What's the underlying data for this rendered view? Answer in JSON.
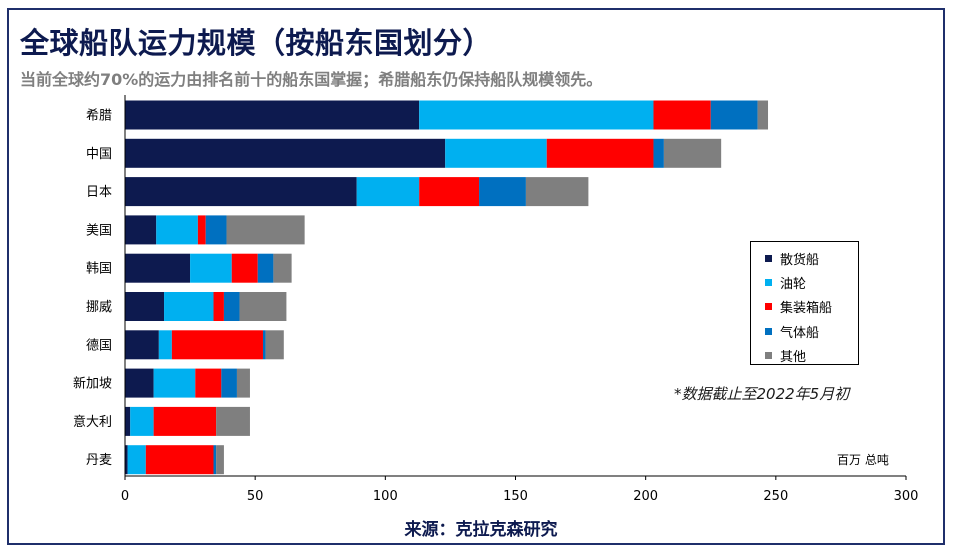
{
  "title": "全球船队运力规模（按船东国划分）",
  "subtitle": "当前全球约70%的运力由排名前十的船东国掌握；希腊船东仍保持船队规模领先。",
  "note": "*数据截止至2022年5月初",
  "unit_label": "百万 总吨",
  "source": "来源：克拉克森研究",
  "chart_data": {
    "type": "bar",
    "orientation": "horizontal",
    "stacked": true,
    "categories": [
      "希腊",
      "中国",
      "日本",
      "美国",
      "韩国",
      "挪威",
      "德国",
      "新加坡",
      "意大利",
      "丹麦"
    ],
    "series": [
      {
        "name": "散货船",
        "color": "#0d1a4f",
        "values": [
          113,
          123,
          89,
          12,
          25,
          15,
          13,
          11,
          2,
          1
        ]
      },
      {
        "name": "油轮",
        "color": "#00b0f0",
        "values": [
          90,
          39,
          24,
          16,
          16,
          19,
          5,
          16,
          9,
          7
        ]
      },
      {
        "name": "集装箱船",
        "color": "#ff0000",
        "values": [
          22,
          41,
          23,
          3,
          10,
          4,
          35,
          10,
          24,
          26
        ]
      },
      {
        "name": "气体船",
        "color": "#0070c0",
        "values": [
          18,
          4,
          18,
          8,
          6,
          6,
          1,
          6,
          0,
          1
        ]
      },
      {
        "name": "其他",
        "color": "#7f7f7f",
        "values": [
          4,
          22,
          24,
          30,
          7,
          18,
          7,
          5,
          13,
          3
        ]
      }
    ],
    "x_ticks": [
      0,
      50,
      100,
      150,
      200,
      250,
      300
    ],
    "xlim": [
      0,
      300
    ],
    "xlabel": "百万 总吨",
    "legend_position": "right",
    "grid": false
  }
}
